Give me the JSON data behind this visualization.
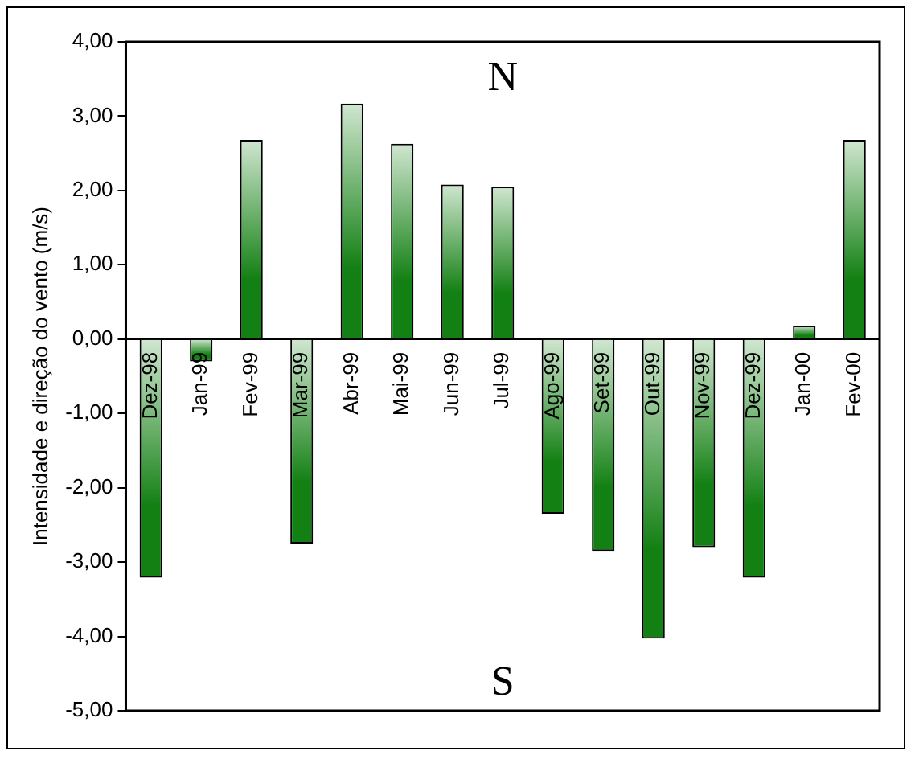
{
  "chart_data": {
    "type": "bar",
    "ylabel": "Intensidade e direção do vento (m/s)",
    "categories": [
      "Dez-98",
      "Jan-99",
      "Fev-99",
      "Mar-99",
      "Abr-99",
      "Mai-99",
      "Jun-99",
      "Jul-99",
      "Ago-99",
      "Set-99",
      "Out-99",
      "Nov-99",
      "Dez-99",
      "Jan-00",
      "Fev-00"
    ],
    "values": [
      -3.21,
      -0.3,
      2.68,
      -2.75,
      3.17,
      2.63,
      2.08,
      2.05,
      -2.35,
      -2.85,
      -4.03,
      -2.8,
      -3.21,
      0.18,
      2.68
    ],
    "color": "#138013",
    "ylim": [
      -5,
      4
    ],
    "yticks": [
      {
        "value": -5,
        "label": "-5,00"
      },
      {
        "value": -4,
        "label": "-4,00"
      },
      {
        "value": -3,
        "label": "-3,00"
      },
      {
        "value": -2,
        "label": "-2,00"
      },
      {
        "value": -1,
        "label": "-1,00"
      },
      {
        "value": 0,
        "label": "0,00"
      },
      {
        "value": 1,
        "label": "1,00"
      },
      {
        "value": 2,
        "label": "2,00"
      },
      {
        "value": 3,
        "label": "3,00"
      },
      {
        "value": 4,
        "label": "4,00"
      }
    ],
    "annotations": [
      "N",
      "S"
    ],
    "grid": false,
    "legend": false
  }
}
